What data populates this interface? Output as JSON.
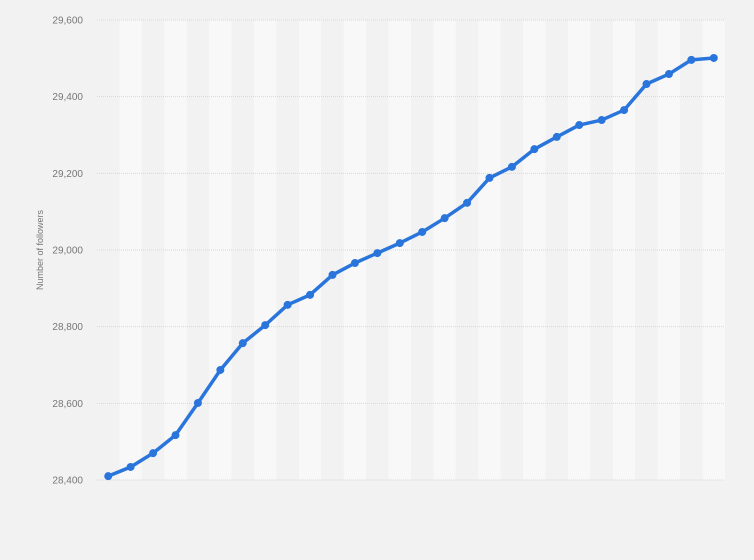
{
  "chart_data": {
    "type": "line",
    "title": "",
    "xlabel": "",
    "ylabel": "Number of followers",
    "ylim": [
      28400,
      29600
    ],
    "yticks": [
      "28,400",
      "28,600",
      "28,800",
      "29,000",
      "29,200",
      "29,400",
      "29,600"
    ],
    "ytick_values": [
      28400,
      28600,
      28800,
      29000,
      29200,
      29400,
      29600
    ],
    "grid": true,
    "line_color": "#2a75dc",
    "values": [
      28410,
      28434,
      28470,
      28517,
      28601,
      28687,
      28757,
      28804,
      28857,
      28883,
      28935,
      28966,
      28992,
      29018,
      29047,
      29083,
      29123,
      29188,
      29217,
      29263,
      29295,
      29326,
      29339,
      29365,
      29433,
      29459,
      29496,
      29501
    ]
  }
}
